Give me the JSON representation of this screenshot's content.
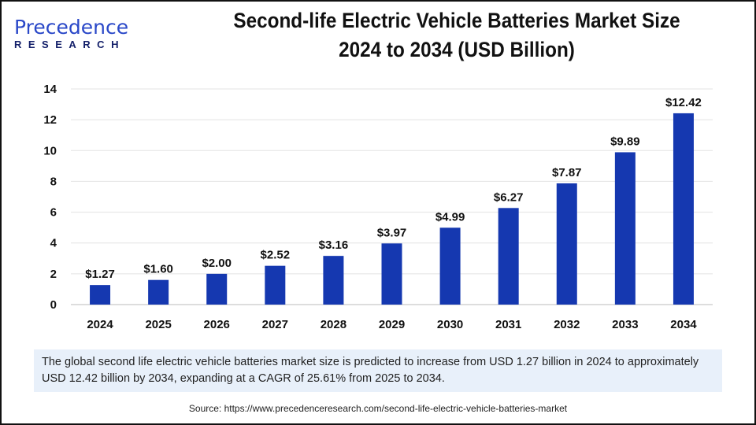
{
  "logo": {
    "line1": "Precedence",
    "line2": "RESEARCH"
  },
  "title_line1": "Second-life Electric Vehicle Batteries Market Size",
  "title_line2": "2024 to 2034 (USD Billion)",
  "colors": {
    "bar": "#1538b0",
    "note_bg": "#e8f0fa"
  },
  "chart_data": {
    "type": "bar",
    "title": "Second-life Electric Vehicle Batteries Market Size 2024 to 2034 (USD Billion)",
    "categories": [
      "2024",
      "2025",
      "2026",
      "2027",
      "2028",
      "2029",
      "2030",
      "2031",
      "2032",
      "2033",
      "2034"
    ],
    "values": [
      1.27,
      1.6,
      2.0,
      2.52,
      3.16,
      3.97,
      4.99,
      6.27,
      7.87,
      9.89,
      12.42
    ],
    "labels": [
      "$1.27",
      "$1.60",
      "$2.00",
      "$2.52",
      "$3.16",
      "$3.97",
      "$4.99",
      "$6.27",
      "$7.87",
      "$9.89",
      "$12.42"
    ],
    "yticks": [
      "0",
      "2",
      "4",
      "6",
      "8",
      "10",
      "12",
      "14"
    ],
    "ylim": [
      0,
      14
    ],
    "grid": true,
    "xlabel": "",
    "ylabel": ""
  },
  "note": "The global second life electric vehicle batteries market  size is predicted to increase from USD 1.27 billion in 2024 to approximately USD 12.42 billion by 2034, expanding at a CAGR of 25.61% from 2025 to 2034.",
  "source": "Source: https://www.precedenceresearch.com/second-life-electric-vehicle-batteries-market"
}
